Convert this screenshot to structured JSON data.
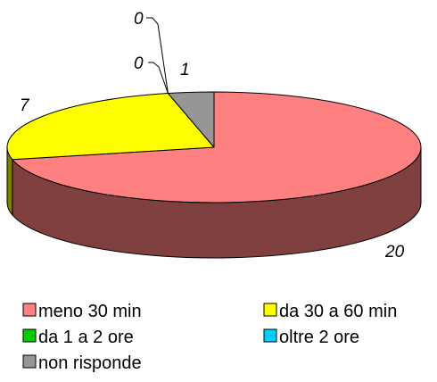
{
  "chart_data": {
    "type": "pie",
    "three_d": true,
    "categories": [
      "meno 30 min",
      "da 30 a 60 min",
      "da 1 a 2 ore",
      "oltre 2 ore",
      "non risponde"
    ],
    "values": [
      20,
      7,
      0,
      0,
      1
    ],
    "colors": [
      "#FF8080",
      "#FFFF00",
      "#00CC00",
      "#00CCFF",
      "#969696"
    ],
    "side_colors": [
      "#804040",
      "#808000",
      "#006600",
      "#006680",
      "#4B4B4B"
    ],
    "data_labels": [
      "20",
      "7",
      "0",
      "0",
      "1"
    ],
    "legend_position": "bottom",
    "title": ""
  }
}
